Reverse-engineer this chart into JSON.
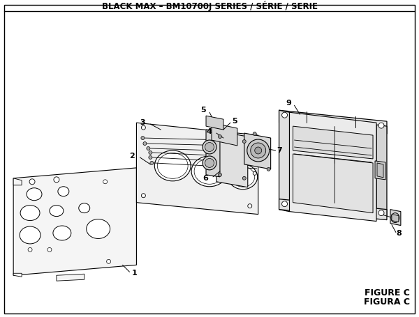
{
  "title": "BLACK MAX – BM10700J SERIES / SÉRIE / SERIE",
  "figure_label": "FIGURE C",
  "figura_label": "FIGURA C",
  "bg_color": "#ffffff",
  "border_color": "#000000",
  "title_fontsize": 8.5,
  "label_fontsize": 8.0
}
